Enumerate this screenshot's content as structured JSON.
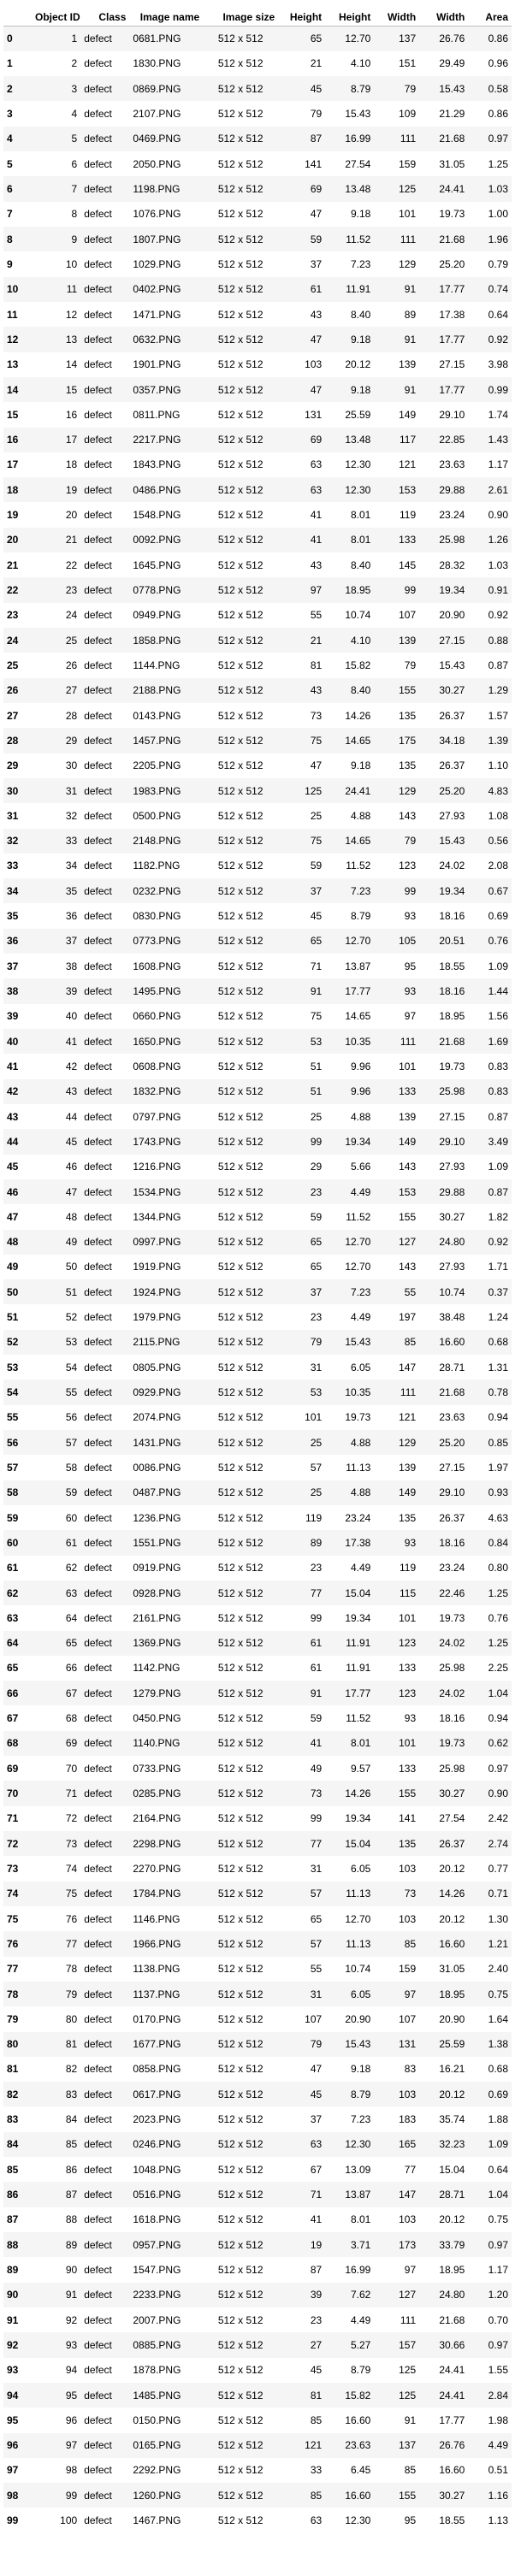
{
  "columns": [
    "",
    "Object ID",
    "Class",
    "Image name",
    "Image size",
    "Height",
    "Height",
    "Width",
    "Width",
    "Area"
  ],
  "rows": [
    [
      0,
      1,
      "defect",
      "0681.PNG",
      "512 x 512",
      65,
      "12.70",
      137,
      "26.76",
      "0.86"
    ],
    [
      1,
      2,
      "defect",
      "1830.PNG",
      "512 x 512",
      21,
      "4.10",
      151,
      "29.49",
      "0.96"
    ],
    [
      2,
      3,
      "defect",
      "0869.PNG",
      "512 x 512",
      45,
      "8.79",
      79,
      "15.43",
      "0.58"
    ],
    [
      3,
      4,
      "defect",
      "2107.PNG",
      "512 x 512",
      79,
      "15.43",
      109,
      "21.29",
      "0.86"
    ],
    [
      4,
      5,
      "defect",
      "0469.PNG",
      "512 x 512",
      87,
      "16.99",
      111,
      "21.68",
      "0.97"
    ],
    [
      5,
      6,
      "defect",
      "2050.PNG",
      "512 x 512",
      141,
      "27.54",
      159,
      "31.05",
      "1.25"
    ],
    [
      6,
      7,
      "defect",
      "1198.PNG",
      "512 x 512",
      69,
      "13.48",
      125,
      "24.41",
      "1.03"
    ],
    [
      7,
      8,
      "defect",
      "1076.PNG",
      "512 x 512",
      47,
      "9.18",
      101,
      "19.73",
      "1.00"
    ],
    [
      8,
      9,
      "defect",
      "1807.PNG",
      "512 x 512",
      59,
      "11.52",
      111,
      "21.68",
      "1.96"
    ],
    [
      9,
      10,
      "defect",
      "1029.PNG",
      "512 x 512",
      37,
      "7.23",
      129,
      "25.20",
      "0.79"
    ],
    [
      10,
      11,
      "defect",
      "0402.PNG",
      "512 x 512",
      61,
      "11.91",
      91,
      "17.77",
      "0.74"
    ],
    [
      11,
      12,
      "defect",
      "1471.PNG",
      "512 x 512",
      43,
      "8.40",
      89,
      "17.38",
      "0.64"
    ],
    [
      12,
      13,
      "defect",
      "0632.PNG",
      "512 x 512",
      47,
      "9.18",
      91,
      "17.77",
      "0.92"
    ],
    [
      13,
      14,
      "defect",
      "1901.PNG",
      "512 x 512",
      103,
      "20.12",
      139,
      "27.15",
      "3.98"
    ],
    [
      14,
      15,
      "defect",
      "0357.PNG",
      "512 x 512",
      47,
      "9.18",
      91,
      "17.77",
      "0.99"
    ],
    [
      15,
      16,
      "defect",
      "0811.PNG",
      "512 x 512",
      131,
      "25.59",
      149,
      "29.10",
      "1.74"
    ],
    [
      16,
      17,
      "defect",
      "2217.PNG",
      "512 x 512",
      69,
      "13.48",
      117,
      "22.85",
      "1.43"
    ],
    [
      17,
      18,
      "defect",
      "1843.PNG",
      "512 x 512",
      63,
      "12.30",
      121,
      "23.63",
      "1.17"
    ],
    [
      18,
      19,
      "defect",
      "0486.PNG",
      "512 x 512",
      63,
      "12.30",
      153,
      "29.88",
      "2.61"
    ],
    [
      19,
      20,
      "defect",
      "1548.PNG",
      "512 x 512",
      41,
      "8.01",
      119,
      "23.24",
      "0.90"
    ],
    [
      20,
      21,
      "defect",
      "0092.PNG",
      "512 x 512",
      41,
      "8.01",
      133,
      "25.98",
      "1.26"
    ],
    [
      21,
      22,
      "defect",
      "1645.PNG",
      "512 x 512",
      43,
      "8.40",
      145,
      "28.32",
      "1.03"
    ],
    [
      22,
      23,
      "defect",
      "0778.PNG",
      "512 x 512",
      97,
      "18.95",
      99,
      "19.34",
      "0.91"
    ],
    [
      23,
      24,
      "defect",
      "0949.PNG",
      "512 x 512",
      55,
      "10.74",
      107,
      "20.90",
      "0.92"
    ],
    [
      24,
      25,
      "defect",
      "1858.PNG",
      "512 x 512",
      21,
      "4.10",
      139,
      "27.15",
      "0.88"
    ],
    [
      25,
      26,
      "defect",
      "1144.PNG",
      "512 x 512",
      81,
      "15.82",
      79,
      "15.43",
      "0.87"
    ],
    [
      26,
      27,
      "defect",
      "2188.PNG",
      "512 x 512",
      43,
      "8.40",
      155,
      "30.27",
      "1.29"
    ],
    [
      27,
      28,
      "defect",
      "0143.PNG",
      "512 x 512",
      73,
      "14.26",
      135,
      "26.37",
      "1.57"
    ],
    [
      28,
      29,
      "defect",
      "1457.PNG",
      "512 x 512",
      75,
      "14.65",
      175,
      "34.18",
      "1.39"
    ],
    [
      29,
      30,
      "defect",
      "2205.PNG",
      "512 x 512",
      47,
      "9.18",
      135,
      "26.37",
      "1.10"
    ],
    [
      30,
      31,
      "defect",
      "1983.PNG",
      "512 x 512",
      125,
      "24.41",
      129,
      "25.20",
      "4.83"
    ],
    [
      31,
      32,
      "defect",
      "0500.PNG",
      "512 x 512",
      25,
      "4.88",
      143,
      "27.93",
      "1.08"
    ],
    [
      32,
      33,
      "defect",
      "2148.PNG",
      "512 x 512",
      75,
      "14.65",
      79,
      "15.43",
      "0.56"
    ],
    [
      33,
      34,
      "defect",
      "1182.PNG",
      "512 x 512",
      59,
      "11.52",
      123,
      "24.02",
      "2.08"
    ],
    [
      34,
      35,
      "defect",
      "0232.PNG",
      "512 x 512",
      37,
      "7.23",
      99,
      "19.34",
      "0.67"
    ],
    [
      35,
      36,
      "defect",
      "0830.PNG",
      "512 x 512",
      45,
      "8.79",
      93,
      "18.16",
      "0.69"
    ],
    [
      36,
      37,
      "defect",
      "0773.PNG",
      "512 x 512",
      65,
      "12.70",
      105,
      "20.51",
      "0.76"
    ],
    [
      37,
      38,
      "defect",
      "1608.PNG",
      "512 x 512",
      71,
      "13.87",
      95,
      "18.55",
      "1.09"
    ],
    [
      38,
      39,
      "defect",
      "1495.PNG",
      "512 x 512",
      91,
      "17.77",
      93,
      "18.16",
      "1.44"
    ],
    [
      39,
      40,
      "defect",
      "0660.PNG",
      "512 x 512",
      75,
      "14.65",
      97,
      "18.95",
      "1.56"
    ],
    [
      40,
      41,
      "defect",
      "1650.PNG",
      "512 x 512",
      53,
      "10.35",
      111,
      "21.68",
      "1.69"
    ],
    [
      41,
      42,
      "defect",
      "0608.PNG",
      "512 x 512",
      51,
      "9.96",
      101,
      "19.73",
      "0.83"
    ],
    [
      42,
      43,
      "defect",
      "1832.PNG",
      "512 x 512",
      51,
      "9.96",
      133,
      "25.98",
      "0.83"
    ],
    [
      43,
      44,
      "defect",
      "0797.PNG",
      "512 x 512",
      25,
      "4.88",
      139,
      "27.15",
      "0.87"
    ],
    [
      44,
      45,
      "defect",
      "1743.PNG",
      "512 x 512",
      99,
      "19.34",
      149,
      "29.10",
      "3.49"
    ],
    [
      45,
      46,
      "defect",
      "1216.PNG",
      "512 x 512",
      29,
      "5.66",
      143,
      "27.93",
      "1.09"
    ],
    [
      46,
      47,
      "defect",
      "1534.PNG",
      "512 x 512",
      23,
      "4.49",
      153,
      "29.88",
      "0.87"
    ],
    [
      47,
      48,
      "defect",
      "1344.PNG",
      "512 x 512",
      59,
      "11.52",
      155,
      "30.27",
      "1.82"
    ],
    [
      48,
      49,
      "defect",
      "0997.PNG",
      "512 x 512",
      65,
      "12.70",
      127,
      "24.80",
      "0.92"
    ],
    [
      49,
      50,
      "defect",
      "1919.PNG",
      "512 x 512",
      65,
      "12.70",
      143,
      "27.93",
      "1.71"
    ],
    [
      50,
      51,
      "defect",
      "1924.PNG",
      "512 x 512",
      37,
      "7.23",
      55,
      "10.74",
      "0.37"
    ],
    [
      51,
      52,
      "defect",
      "1979.PNG",
      "512 x 512",
      23,
      "4.49",
      197,
      "38.48",
      "1.24"
    ],
    [
      52,
      53,
      "defect",
      "2115.PNG",
      "512 x 512",
      79,
      "15.43",
      85,
      "16.60",
      "0.68"
    ],
    [
      53,
      54,
      "defect",
      "0805.PNG",
      "512 x 512",
      31,
      "6.05",
      147,
      "28.71",
      "1.31"
    ],
    [
      54,
      55,
      "defect",
      "0929.PNG",
      "512 x 512",
      53,
      "10.35",
      111,
      "21.68",
      "0.78"
    ],
    [
      55,
      56,
      "defect",
      "2074.PNG",
      "512 x 512",
      101,
      "19.73",
      121,
      "23.63",
      "0.94"
    ],
    [
      56,
      57,
      "defect",
      "1431.PNG",
      "512 x 512",
      25,
      "4.88",
      129,
      "25.20",
      "0.85"
    ],
    [
      57,
      58,
      "defect",
      "0086.PNG",
      "512 x 512",
      57,
      "11.13",
      139,
      "27.15",
      "1.97"
    ],
    [
      58,
      59,
      "defect",
      "0487.PNG",
      "512 x 512",
      25,
      "4.88",
      149,
      "29.10",
      "0.93"
    ],
    [
      59,
      60,
      "defect",
      "1236.PNG",
      "512 x 512",
      119,
      "23.24",
      135,
      "26.37",
      "4.63"
    ],
    [
      60,
      61,
      "defect",
      "1551.PNG",
      "512 x 512",
      89,
      "17.38",
      93,
      "18.16",
      "0.84"
    ],
    [
      61,
      62,
      "defect",
      "0919.PNG",
      "512 x 512",
      23,
      "4.49",
      119,
      "23.24",
      "0.80"
    ],
    [
      62,
      63,
      "defect",
      "0928.PNG",
      "512 x 512",
      77,
      "15.04",
      115,
      "22.46",
      "1.25"
    ],
    [
      63,
      64,
      "defect",
      "2161.PNG",
      "512 x 512",
      99,
      "19.34",
      101,
      "19.73",
      "0.76"
    ],
    [
      64,
      65,
      "defect",
      "1369.PNG",
      "512 x 512",
      61,
      "11.91",
      123,
      "24.02",
      "1.25"
    ],
    [
      65,
      66,
      "defect",
      "1142.PNG",
      "512 x 512",
      61,
      "11.91",
      133,
      "25.98",
      "2.25"
    ],
    [
      66,
      67,
      "defect",
      "1279.PNG",
      "512 x 512",
      91,
      "17.77",
      123,
      "24.02",
      "1.04"
    ],
    [
      67,
      68,
      "defect",
      "0450.PNG",
      "512 x 512",
      59,
      "11.52",
      93,
      "18.16",
      "0.94"
    ],
    [
      68,
      69,
      "defect",
      "1140.PNG",
      "512 x 512",
      41,
      "8.01",
      101,
      "19.73",
      "0.62"
    ],
    [
      69,
      70,
      "defect",
      "0733.PNG",
      "512 x 512",
      49,
      "9.57",
      133,
      "25.98",
      "0.97"
    ],
    [
      70,
      71,
      "defect",
      "0285.PNG",
      "512 x 512",
      73,
      "14.26",
      155,
      "30.27",
      "0.90"
    ],
    [
      71,
      72,
      "defect",
      "2164.PNG",
      "512 x 512",
      99,
      "19.34",
      141,
      "27.54",
      "2.42"
    ],
    [
      72,
      73,
      "defect",
      "2298.PNG",
      "512 x 512",
      77,
      "15.04",
      135,
      "26.37",
      "2.74"
    ],
    [
      73,
      74,
      "defect",
      "2270.PNG",
      "512 x 512",
      31,
      "6.05",
      103,
      "20.12",
      "0.77"
    ],
    [
      74,
      75,
      "defect",
      "1784.PNG",
      "512 x 512",
      57,
      "11.13",
      73,
      "14.26",
      "0.71"
    ],
    [
      75,
      76,
      "defect",
      "1146.PNG",
      "512 x 512",
      65,
      "12.70",
      103,
      "20.12",
      "1.30"
    ],
    [
      76,
      77,
      "defect",
      "1966.PNG",
      "512 x 512",
      57,
      "11.13",
      85,
      "16.60",
      "1.21"
    ],
    [
      77,
      78,
      "defect",
      "1138.PNG",
      "512 x 512",
      55,
      "10.74",
      159,
      "31.05",
      "2.40"
    ],
    [
      78,
      79,
      "defect",
      "1137.PNG",
      "512 x 512",
      31,
      "6.05",
      97,
      "18.95",
      "0.75"
    ],
    [
      79,
      80,
      "defect",
      "0170.PNG",
      "512 x 512",
      107,
      "20.90",
      107,
      "20.90",
      "1.64"
    ],
    [
      80,
      81,
      "defect",
      "1677.PNG",
      "512 x 512",
      79,
      "15.43",
      131,
      "25.59",
      "1.38"
    ],
    [
      81,
      82,
      "defect",
      "0858.PNG",
      "512 x 512",
      47,
      "9.18",
      83,
      "16.21",
      "0.68"
    ],
    [
      82,
      83,
      "defect",
      "0617.PNG",
      "512 x 512",
      45,
      "8.79",
      103,
      "20.12",
      "0.69"
    ],
    [
      83,
      84,
      "defect",
      "2023.PNG",
      "512 x 512",
      37,
      "7.23",
      183,
      "35.74",
      "1.88"
    ],
    [
      84,
      85,
      "defect",
      "0246.PNG",
      "512 x 512",
      63,
      "12.30",
      165,
      "32.23",
      "1.09"
    ],
    [
      85,
      86,
      "defect",
      "1048.PNG",
      "512 x 512",
      67,
      "13.09",
      77,
      "15.04",
      "0.64"
    ],
    [
      86,
      87,
      "defect",
      "0516.PNG",
      "512 x 512",
      71,
      "13.87",
      147,
      "28.71",
      "1.04"
    ],
    [
      87,
      88,
      "defect",
      "1618.PNG",
      "512 x 512",
      41,
      "8.01",
      103,
      "20.12",
      "0.75"
    ],
    [
      88,
      89,
      "defect",
      "0957.PNG",
      "512 x 512",
      19,
      "3.71",
      173,
      "33.79",
      "0.97"
    ],
    [
      89,
      90,
      "defect",
      "1547.PNG",
      "512 x 512",
      87,
      "16.99",
      97,
      "18.95",
      "1.17"
    ],
    [
      90,
      91,
      "defect",
      "2233.PNG",
      "512 x 512",
      39,
      "7.62",
      127,
      "24.80",
      "1.20"
    ],
    [
      91,
      92,
      "defect",
      "2007.PNG",
      "512 x 512",
      23,
      "4.49",
      111,
      "21.68",
      "0.70"
    ],
    [
      92,
      93,
      "defect",
      "0885.PNG",
      "512 x 512",
      27,
      "5.27",
      157,
      "30.66",
      "0.97"
    ],
    [
      93,
      94,
      "defect",
      "1878.PNG",
      "512 x 512",
      45,
      "8.79",
      125,
      "24.41",
      "1.55"
    ],
    [
      94,
      95,
      "defect",
      "1485.PNG",
      "512 x 512",
      81,
      "15.82",
      125,
      "24.41",
      "2.84"
    ],
    [
      95,
      96,
      "defect",
      "0150.PNG",
      "512 x 512",
      85,
      "16.60",
      91,
      "17.77",
      "1.98"
    ],
    [
      96,
      97,
      "defect",
      "0165.PNG",
      "512 x 512",
      121,
      "23.63",
      137,
      "26.76",
      "4.49"
    ],
    [
      97,
      98,
      "defect",
      "2292.PNG",
      "512 x 512",
      33,
      "6.45",
      85,
      "16.60",
      "0.51"
    ],
    [
      98,
      99,
      "defect",
      "1260.PNG",
      "512 x 512",
      85,
      "16.60",
      155,
      "30.27",
      "1.16"
    ],
    [
      99,
      100,
      "defect",
      "1467.PNG",
      "512 x 512",
      63,
      "12.30",
      95,
      "18.55",
      "1.13"
    ]
  ]
}
